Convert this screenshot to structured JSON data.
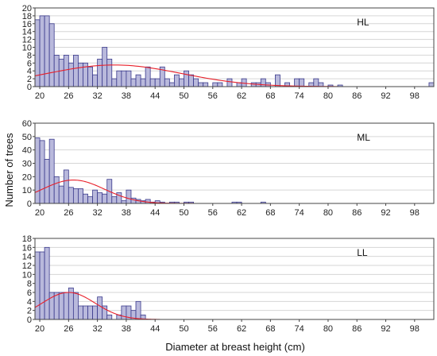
{
  "ylabel": "Number of trees",
  "xlabel": "Diameter at breast height (cm)",
  "colors": {
    "bar_fill": "#b9b9dc",
    "bar_stroke": "#3a3a8c",
    "curve": "#e8202a",
    "grid": "#d6d6d6",
    "frame": "#444444"
  },
  "chart_data": [
    {
      "type": "bar",
      "panel_label": "HL",
      "x_ticks": [
        20,
        26,
        32,
        38,
        44,
        50,
        56,
        62,
        68,
        74,
        80,
        86,
        92,
        98
      ],
      "xlim": [
        19,
        102
      ],
      "y_ticks": [
        0,
        2,
        4,
        6,
        8,
        10,
        12,
        14,
        16,
        18,
        20
      ],
      "ylim": [
        0,
        20
      ],
      "bin_width": 1,
      "grid": true,
      "bins": [
        [
          19,
          17
        ],
        [
          20,
          18
        ],
        [
          21,
          18
        ],
        [
          22,
          16
        ],
        [
          23,
          8
        ],
        [
          24,
          7
        ],
        [
          25,
          8
        ],
        [
          26,
          6
        ],
        [
          27,
          8
        ],
        [
          28,
          6
        ],
        [
          29,
          6
        ],
        [
          30,
          5
        ],
        [
          31,
          3
        ],
        [
          32,
          7
        ],
        [
          33,
          10
        ],
        [
          34,
          7
        ],
        [
          35,
          2
        ],
        [
          36,
          4
        ],
        [
          37,
          4
        ],
        [
          38,
          4
        ],
        [
          39,
          2
        ],
        [
          40,
          3
        ],
        [
          41,
          2
        ],
        [
          42,
          5
        ],
        [
          43,
          2
        ],
        [
          44,
          2
        ],
        [
          45,
          5
        ],
        [
          46,
          2
        ],
        [
          47,
          1
        ],
        [
          48,
          3
        ],
        [
          49,
          2
        ],
        [
          50,
          4
        ],
        [
          51,
          3
        ],
        [
          52,
          2
        ],
        [
          53,
          1
        ],
        [
          54,
          1
        ],
        [
          56,
          1
        ],
        [
          57,
          1
        ],
        [
          59,
          2
        ],
        [
          61,
          1
        ],
        [
          62,
          2
        ],
        [
          64,
          1
        ],
        [
          65,
          1
        ],
        [
          66,
          2
        ],
        [
          67,
          1
        ],
        [
          69,
          3
        ],
        [
          71,
          1
        ],
        [
          73,
          2
        ],
        [
          74,
          2
        ],
        [
          76,
          1
        ],
        [
          77,
          2
        ],
        [
          78,
          1
        ],
        [
          80,
          0.4
        ],
        [
          82,
          0.4
        ],
        [
          101,
          1
        ]
      ],
      "fit_curve": {
        "kind": "normal",
        "mean": 35.5,
        "sd": 14,
        "peak": 5.5,
        "x_range": [
          19,
          82
        ]
      }
    },
    {
      "type": "bar",
      "panel_label": "ML",
      "x_ticks": [
        20,
        26,
        32,
        38,
        44,
        50,
        56,
        62,
        68,
        74,
        80,
        86,
        92,
        98
      ],
      "xlim": [
        19,
        102
      ],
      "y_ticks": [
        0,
        10,
        20,
        30,
        40,
        50,
        60
      ],
      "ylim": [
        0,
        60
      ],
      "bin_width": 1,
      "grid": true,
      "bins": [
        [
          19,
          49
        ],
        [
          20,
          47
        ],
        [
          21,
          33
        ],
        [
          22,
          48
        ],
        [
          23,
          20
        ],
        [
          24,
          13
        ],
        [
          25,
          25
        ],
        [
          26,
          12
        ],
        [
          27,
          11
        ],
        [
          28,
          11
        ],
        [
          29,
          7
        ],
        [
          30,
          5
        ],
        [
          31,
          10
        ],
        [
          32,
          8
        ],
        [
          33,
          7
        ],
        [
          34,
          18
        ],
        [
          35,
          5
        ],
        [
          36,
          8
        ],
        [
          37,
          2
        ],
        [
          38,
          10
        ],
        [
          39,
          4
        ],
        [
          40,
          3
        ],
        [
          41,
          2
        ],
        [
          42,
          3
        ],
        [
          43,
          1
        ],
        [
          44,
          2
        ],
        [
          45,
          1
        ],
        [
          47,
          1
        ],
        [
          48,
          1
        ],
        [
          50,
          1
        ],
        [
          51,
          1
        ],
        [
          60,
          1
        ],
        [
          61,
          1
        ],
        [
          66,
          1
        ]
      ],
      "fit_curve": {
        "kind": "normal",
        "mean": 27,
        "sd": 6.5,
        "peak": 17.5,
        "x_range": [
          19,
          52
        ]
      }
    },
    {
      "type": "bar",
      "panel_label": "LL",
      "x_ticks": [
        20,
        26,
        32,
        38,
        44,
        50,
        56,
        62,
        68,
        74,
        80,
        86,
        92,
        98
      ],
      "xlim": [
        19,
        102
      ],
      "y_ticks": [
        0,
        2,
        4,
        6,
        8,
        10,
        12,
        14,
        16,
        18
      ],
      "ylim": [
        0,
        18
      ],
      "bin_width": 1,
      "grid": true,
      "bins": [
        [
          19,
          15
        ],
        [
          20,
          15
        ],
        [
          21,
          16
        ],
        [
          22,
          6
        ],
        [
          23,
          6
        ],
        [
          24,
          6
        ],
        [
          25,
          6
        ],
        [
          26,
          7
        ],
        [
          27,
          6
        ],
        [
          28,
          3
        ],
        [
          29,
          3
        ],
        [
          30,
          3
        ],
        [
          31,
          3
        ],
        [
          32,
          5
        ],
        [
          33,
          3
        ],
        [
          34,
          1
        ],
        [
          36,
          1
        ],
        [
          37,
          3
        ],
        [
          38,
          3
        ],
        [
          39,
          2
        ],
        [
          40,
          4
        ],
        [
          41,
          1
        ]
      ],
      "fit_curve": {
        "kind": "normal",
        "mean": 26,
        "sd": 5.5,
        "peak": 6,
        "x_range": [
          19,
          45
        ]
      }
    }
  ]
}
